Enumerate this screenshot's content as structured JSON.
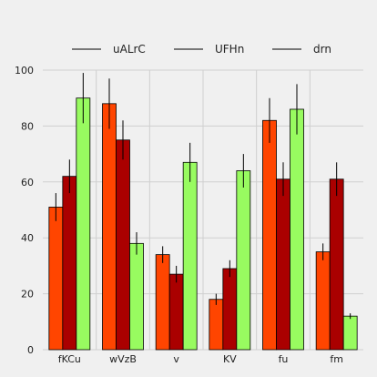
{
  "chart_data": {
    "type": "bar",
    "categories": [
      "fKCu",
      "wVzB",
      "v",
      "KV",
      "fu",
      "fm"
    ],
    "series": [
      {
        "name": "uALrC",
        "color": "#ff4500",
        "values": [
          51,
          88,
          34,
          18,
          82,
          35
        ],
        "errors": [
          5,
          9,
          3,
          2,
          8,
          3
        ]
      },
      {
        "name": "UFHn",
        "color": "#aa0000",
        "values": [
          62,
          75,
          27,
          29,
          61,
          61
        ],
        "errors": [
          6,
          7,
          3,
          3,
          6,
          6
        ]
      },
      {
        "name": "drn",
        "color": "#98fb60",
        "values": [
          90,
          38,
          67,
          64,
          86,
          12
        ],
        "errors": [
          9,
          4,
          7,
          6,
          9,
          1
        ]
      }
    ],
    "xlabel": "",
    "ylabel": "",
    "ylim": [
      0,
      100
    ],
    "yticks": [
      0,
      20,
      40,
      60,
      80,
      100
    ],
    "grid": true,
    "legend_position": "top"
  }
}
